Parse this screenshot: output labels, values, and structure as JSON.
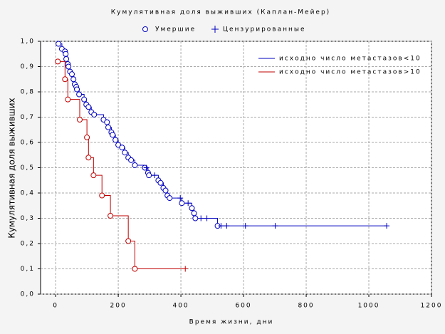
{
  "chart_data": {
    "type": "kaplan-meier",
    "title": "Кумулятивная доля выживших (Каплан-Мейер)",
    "marker_legend": {
      "event": "Умершие",
      "censored": "Цензурированные"
    },
    "xlabel": "Время жизни, дни",
    "ylabel": "Кумулятивная доля выживших",
    "xlim": [
      -48,
      1200
    ],
    "ylim": [
      0,
      1
    ],
    "xticks": [
      0,
      200,
      400,
      600,
      800,
      1000,
      1200
    ],
    "yticks": [
      {
        "value": 0,
        "label": "0,0"
      },
      {
        "value": 0.1,
        "label": "0,1"
      },
      {
        "value": 0.2,
        "label": "0,2"
      },
      {
        "value": 0.3,
        "label": "0,3"
      },
      {
        "value": 0.4,
        "label": "0,4"
      },
      {
        "value": 0.5,
        "label": "0,5"
      },
      {
        "value": 0.6,
        "label": "0,6"
      },
      {
        "value": 0.7,
        "label": "0,7"
      },
      {
        "value": 0.8,
        "label": "0,8"
      },
      {
        "value": 0.9,
        "label": "0,9"
      },
      {
        "value": 1,
        "label": "1,0"
      }
    ],
    "grid": true,
    "series": [
      {
        "name": "исходно число метастазов<10",
        "color": "#0000c0",
        "x": [
          9,
          20,
          30,
          32,
          34,
          39,
          41,
          46,
          52,
          57,
          61,
          66,
          68,
          75,
          91,
          98,
          105,
          114,
          123,
          153,
          164,
          168,
          178,
          182,
          191,
          200,
          212,
          221,
          232,
          241,
          253,
          285,
          290,
          295,
          298,
          316,
          328,
          335,
          344,
          351,
          357,
          364,
          398,
          403,
          423,
          435,
          442,
          446,
          464,
          483,
          517,
          528,
          546,
          606,
          701,
          1057
        ],
        "values": [
          0.99,
          0.97,
          0.96,
          0.95,
          0.93,
          0.91,
          0.9,
          0.88,
          0.87,
          0.85,
          0.83,
          0.82,
          0.81,
          0.79,
          0.77,
          0.75,
          0.74,
          0.72,
          0.71,
          0.69,
          0.68,
          0.66,
          0.64,
          0.63,
          0.61,
          0.59,
          0.58,
          0.56,
          0.54,
          0.53,
          0.51,
          0.5,
          0.5,
          0.48,
          0.47,
          0.47,
          0.45,
          0.44,
          0.42,
          0.41,
          0.39,
          0.38,
          0.38,
          0.36,
          0.36,
          0.34,
          0.32,
          0.3,
          0.3,
          0.3,
          0.27,
          0.27,
          0.27,
          0.27,
          0.27,
          0.27
        ],
        "censored": [
          false,
          false,
          false,
          false,
          false,
          false,
          false,
          false,
          false,
          false,
          false,
          false,
          false,
          false,
          false,
          false,
          false,
          false,
          false,
          false,
          false,
          false,
          false,
          false,
          false,
          false,
          false,
          false,
          false,
          false,
          false,
          false,
          true,
          false,
          false,
          true,
          false,
          false,
          false,
          false,
          false,
          false,
          true,
          false,
          true,
          false,
          false,
          false,
          true,
          true,
          false,
          true,
          true,
          true,
          true,
          true
        ]
      },
      {
        "name": "исходно число метастазов>10",
        "color": "#c00000",
        "x": [
          7,
          30,
          39,
          77,
          100,
          105,
          121,
          148,
          175,
          232,
          253,
          414
        ],
        "values": [
          0.92,
          0.85,
          0.77,
          0.69,
          0.62,
          0.54,
          0.47,
          0.39,
          0.31,
          0.21,
          0.1,
          0.1
        ],
        "censored": [
          false,
          false,
          false,
          false,
          false,
          false,
          false,
          false,
          false,
          false,
          false,
          true
        ]
      }
    ]
  }
}
